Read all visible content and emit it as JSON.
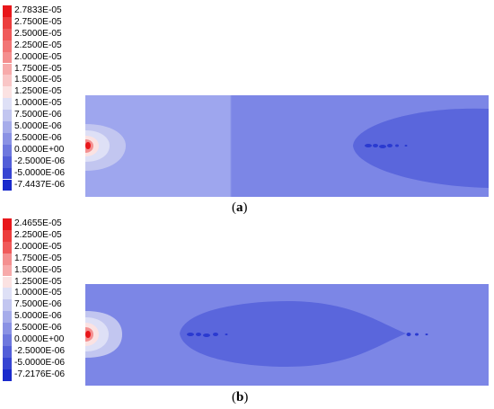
{
  "panels": [
    {
      "id": "a",
      "caption_open": "(",
      "caption_letter": "a",
      "caption_close": ")",
      "legend_labels": [
        "2.7833E-05",
        "2.7500E-05",
        "2.5000E-05",
        "2.2500E-05",
        "2.0000E-05",
        "1.7500E-05",
        "1.5000E-05",
        "1.2500E-05",
        "1.0000E-05",
        "7.5000E-06",
        "5.0000E-06",
        "2.5000E-06",
        "0.0000E+00",
        "-2.5000E-06",
        "-5.0000E-06",
        "-7.4437E-06"
      ],
      "legend_colors": [
        "#e8171b",
        "#ec3e3e",
        "#f05a5a",
        "#f27575",
        "#f48f8f",
        "#f7aaaa",
        "#f9c6c6",
        "#fbe2e2",
        "#dee0f6",
        "#c2c6f0",
        "#a6acea",
        "#8a92e4",
        "#6e78de",
        "#525ed8",
        "#3644d2",
        "#1a2acc"
      ],
      "field_colors": {
        "left": "#9ea6ee",
        "right": "#7c86e6",
        "plume": "#5a66dc"
      }
    },
    {
      "id": "b",
      "caption_open": "(",
      "caption_letter": "b",
      "caption_close": ")",
      "legend_labels": [
        "2.4655E-05",
        "2.2500E-05",
        "2.0000E-05",
        "1.7500E-05",
        "1.5000E-05",
        "1.2500E-05",
        "1.0000E-05",
        "7.5000E-06",
        "5.0000E-06",
        "2.5000E-06",
        "0.0000E+00",
        "-2.5000E-06",
        "-5.0000E-06",
        "-7.2176E-06"
      ],
      "legend_colors": [
        "#e8171b",
        "#ec3e3e",
        "#f05a5a",
        "#f48f8f",
        "#f7aaaa",
        "#fbe2e2",
        "#dee0f6",
        "#c2c6f0",
        "#a6acea",
        "#8a92e4",
        "#6e78de",
        "#525ed8",
        "#3644d2",
        "#1a2acc"
      ],
      "field_colors": {
        "left": "#7c86e6",
        "right": "#7c86e6",
        "plume": "#5a66dc"
      }
    }
  ]
}
